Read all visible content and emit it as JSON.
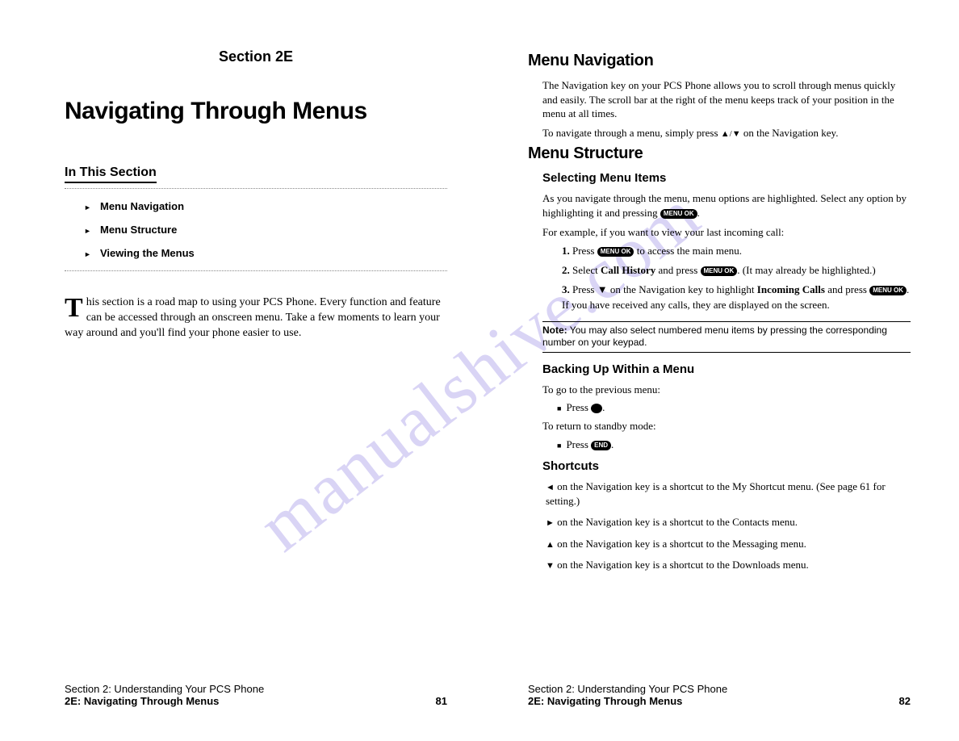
{
  "watermark": "manualshive.com",
  "left_page": {
    "section_label": "Section 2E",
    "title": "Navigating Through Menus",
    "in_this_section_heading": "In This Section",
    "toc": [
      "Menu Navigation",
      "Menu Structure",
      "Viewing the Menus"
    ],
    "intro_dropcap": "T",
    "intro_text": "his section is a road map to using your PCS Phone. Every function and feature can be accessed through an onscreen menu. Take a few moments to learn your way around and you'll find your phone easier to use.",
    "footer_line1": "Section 2: Understanding Your PCS Phone",
    "footer_line2": "2E: Navigating Through Menus",
    "page_number": "81"
  },
  "right_page": {
    "h_menu_nav": "Menu Navigation",
    "menu_nav_p1": "The Navigation key on your PCS Phone allows you to scroll through menus quickly and easily. The scroll bar at the right of the menu keeps track of your position in the menu at all times.",
    "menu_nav_p2_pre": "To navigate through a menu, simply press ",
    "menu_nav_p2_mid": "▲/▼",
    "menu_nav_p2_post": " on the Navigation key.",
    "h_menu_struct": "Menu Structure",
    "h_selecting": "Selecting Menu Items",
    "select_p1_pre": "As you navigate through the menu, menu options are highlighted. Select any option by highlighting it and pressing ",
    "select_p1_key": "MENU OK",
    "select_p1_post": ".",
    "select_p2": "For example, if you want to view your last incoming call:",
    "steps": [
      {
        "num": "1.",
        "pre": "Press ",
        "key": "MENU OK",
        "post": " to access the main menu."
      },
      {
        "num": "2.",
        "pre": "Select ",
        "bold1": "Call History",
        "mid": " and press ",
        "key": "MENU OK",
        "post": ". (It may already be highlighted.)"
      },
      {
        "num": "3.",
        "pre": "Press ▼ on the Navigation key to highlight ",
        "bold1": "Incoming Calls",
        "mid": " and press ",
        "key": "MENU OK",
        "post": ". If you have received any calls, they are displayed on the screen."
      }
    ],
    "note_label": "Note:",
    "note_text": " You may also select numbered menu items by pressing the corresponding number on your keypad.",
    "h_backing": "Backing Up Within a Menu",
    "back_p1": "To go to the previous menu:",
    "back_item1_pre": "Press ",
    "back_item1_post": ".",
    "back_p2": "To return to standby mode:",
    "back_item2_pre": "Press ",
    "back_item2_key": "END",
    "back_item2_post": ".",
    "h_shortcuts": "Shortcuts",
    "shortcuts": [
      {
        "arrow": "◄",
        "text": " on the Navigation key is a shortcut to the My Shortcut menu. (See page 61 for setting.)"
      },
      {
        "arrow": "►",
        "text": " on the Navigation key is a shortcut to the Contacts menu."
      },
      {
        "arrow": "▲",
        "text": " on the Navigation key is a shortcut to the Messaging menu."
      },
      {
        "arrow": "▼",
        "text": " on the Navigation key is a shortcut to the Downloads menu."
      }
    ],
    "footer_line1": "Section 2: Understanding Your PCS Phone",
    "footer_line2": "2E: Navigating Through Menus",
    "page_number": "82"
  }
}
